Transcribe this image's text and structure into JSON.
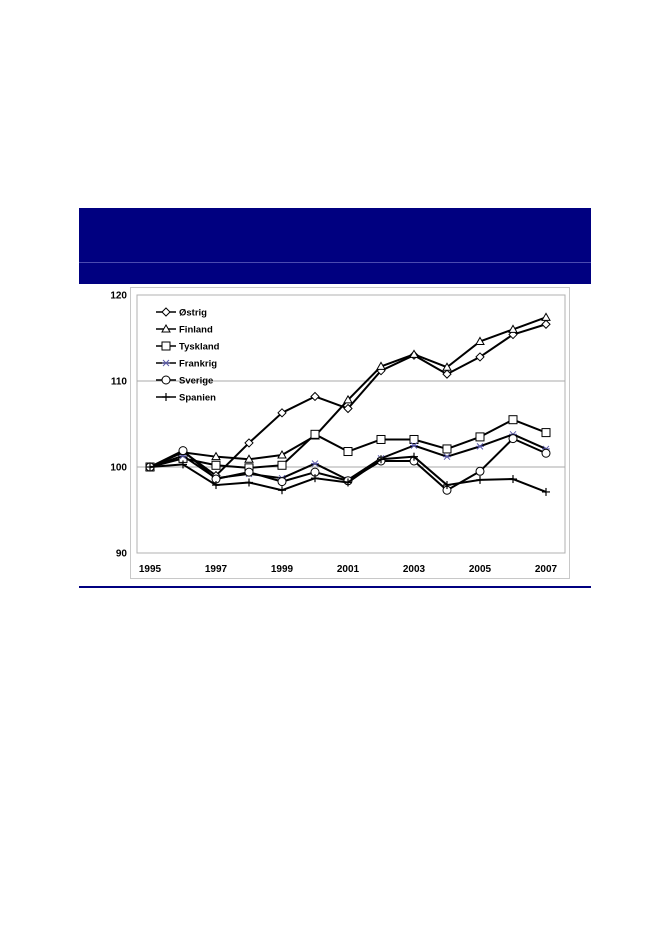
{
  "chart_data": {
    "type": "line",
    "title": "",
    "xlabel": "",
    "ylabel": "",
    "x": [
      1995,
      1996,
      1997,
      1998,
      1999,
      2000,
      2001,
      2002,
      2003,
      2004,
      2005,
      2006,
      2007
    ],
    "x_tick_labels": [
      "1995",
      "1997",
      "1999",
      "2001",
      "2003",
      "2005",
      "2007"
    ],
    "y_tick_labels": [
      "90",
      "100",
      "110",
      "120"
    ],
    "ylim": [
      90,
      120
    ],
    "grid": "horizontal",
    "legend_position": "top-left",
    "series": [
      {
        "name": "Østrig",
        "marker": "diamond",
        "values": [
          100,
          101.8,
          99.0,
          102.8,
          106.3,
          108.2,
          106.8,
          111.2,
          113.0,
          110.8,
          112.8,
          115.4,
          116.6
        ]
      },
      {
        "name": "Finland",
        "marker": "triangle",
        "values": [
          100,
          101.7,
          101.2,
          100.9,
          101.4,
          103.6,
          107.8,
          111.7,
          113.1,
          111.6,
          114.6,
          116.0,
          117.4
        ]
      },
      {
        "name": "Tyskland",
        "marker": "square",
        "values": [
          100,
          101.0,
          100.2,
          99.9,
          100.2,
          103.8,
          101.8,
          103.2,
          103.2,
          102.1,
          103.5,
          105.5,
          104.0
        ]
      },
      {
        "name": "Frankrig",
        "marker": "asterisk",
        "values": [
          100,
          101.3,
          98.7,
          99.2,
          98.7,
          100.4,
          98.5,
          101.0,
          102.5,
          101.2,
          102.4,
          103.8,
          102.1
        ]
      },
      {
        "name": "Sverige",
        "marker": "circle",
        "values": [
          100,
          101.9,
          98.6,
          99.4,
          98.3,
          99.4,
          98.4,
          100.7,
          100.7,
          97.3,
          99.5,
          103.3,
          101.6
        ]
      },
      {
        "name": "Spanien",
        "marker": "plus",
        "values": [
          100,
          100.3,
          97.9,
          98.2,
          97.3,
          98.7,
          98.2,
          100.9,
          101.2,
          97.9,
          98.5,
          98.6,
          97.1
        ]
      }
    ]
  }
}
